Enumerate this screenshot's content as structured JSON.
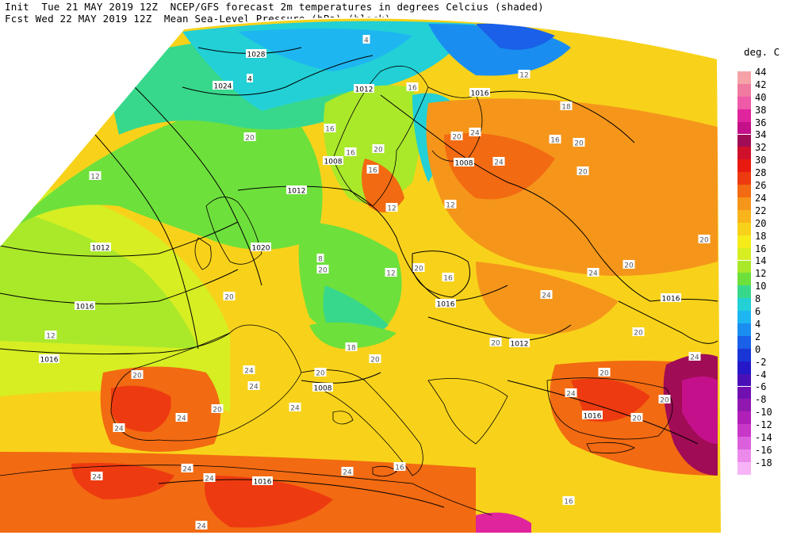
{
  "header": {
    "line1": "Init  Tue 21 MAY 2019 12Z  NCEP/GFS forecast 2m temperatures in degrees Celcius (shaded)",
    "line2": "Fcst Wed 22 MAY 2019 12Z  Mean Sea-Level Pressure (hPa) (black)."
  },
  "legend": {
    "unit": "deg. C",
    "ticks": [
      "44",
      "42",
      "40",
      "38",
      "36",
      "34",
      "32",
      "30",
      "28",
      "26",
      "24",
      "22",
      "20",
      "18",
      "16",
      "14",
      "12",
      "10",
      "8",
      "6",
      "4",
      "2",
      "0",
      "-2",
      "-4",
      "-6",
      "-8",
      "-10",
      "-12",
      "-14",
      "-16",
      "-18"
    ],
    "colors": [
      "#f5a3a8",
      "#f07aa0",
      "#ee5aa8",
      "#e0249e",
      "#c4108a",
      "#a00c55",
      "#d0102a",
      "#e81a10",
      "#ee3a10",
      "#f26a12",
      "#f5961a",
      "#f8b41a",
      "#f8d21a",
      "#f6ec1a",
      "#d6ee22",
      "#aae82a",
      "#6ee03c",
      "#38d88c",
      "#22d0d6",
      "#1eb6f0",
      "#1a8ef0",
      "#1a60e8",
      "#1a36d6",
      "#2418c8",
      "#4a10b8",
      "#7010b0",
      "#9018b0",
      "#b020b8",
      "#c838c8",
      "#dc60dc",
      "#ec8aec",
      "#f6b4f6"
    ]
  },
  "isobars": [
    "1028",
    "4",
    "1024",
    "1020",
    "1016",
    "1012",
    "1008",
    "1012",
    "1012",
    "1020",
    "1016",
    "1020",
    "1016",
    "1016",
    "1012",
    "1016",
    "1008",
    "1016",
    "1016",
    "1008"
  ],
  "temperature_labels": [
    "4",
    "16",
    "12",
    "18",
    "16",
    "16",
    "20",
    "20",
    "24",
    "24",
    "20",
    "16",
    "20",
    "12",
    "16",
    "12",
    "20",
    "20",
    "16",
    "24",
    "24",
    "20",
    "20",
    "20",
    "20",
    "24",
    "20",
    "20",
    "24",
    "16",
    "18",
    "20",
    "20",
    "20",
    "24",
    "24",
    "20",
    "24",
    "20",
    "24",
    "24",
    "24",
    "24",
    "24",
    "24",
    "16",
    "12",
    "12",
    "8",
    "12",
    "20",
    "20",
    "24"
  ],
  "colors": {
    "sea_green": "#5ee08a",
    "land_warm": "#f8b41a",
    "hot": "#ee3a10",
    "cool": "#22d0d6",
    "cold": "#1a60e8"
  }
}
